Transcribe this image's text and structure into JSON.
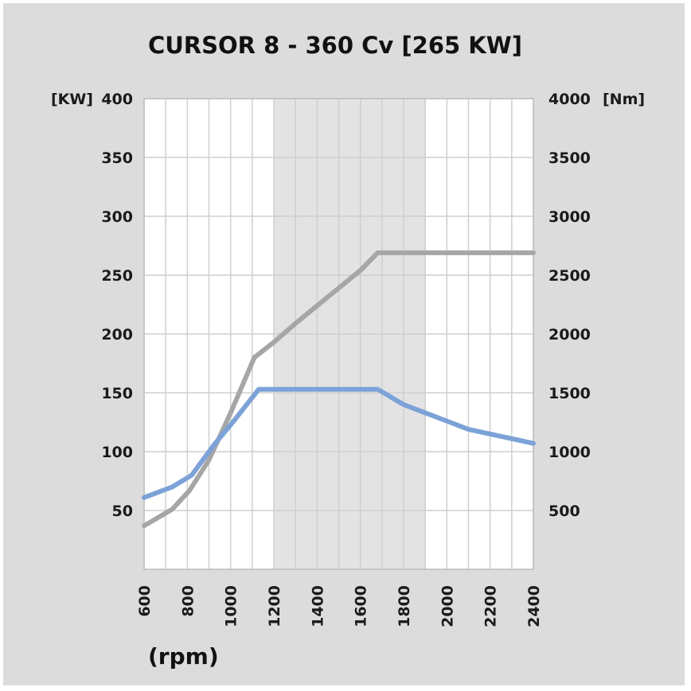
{
  "chart_data": {
    "type": "line",
    "title": "CURSOR 8 - 360 Cv [265 KW]",
    "xlabel": "(rpm)",
    "ylabel_left": "[KW]",
    "ylabel_right": "[Nm]",
    "x_ticks": [
      "600",
      "800",
      "1000",
      "1200",
      "1400",
      "1600",
      "1800",
      "2000",
      "2200",
      "2400"
    ],
    "y_left_ticks": [
      "50",
      "100",
      "150",
      "200",
      "250",
      "300",
      "350",
      "400"
    ],
    "y_right_ticks": [
      "500",
      "1000",
      "1500",
      "2000",
      "2500",
      "3000",
      "3500",
      "4000"
    ],
    "xlim": [
      600,
      2400
    ],
    "ylim_left": [
      0,
      400
    ],
    "ylim_right": [
      0,
      4000
    ],
    "grid": true,
    "shaded_band_x": [
      1200,
      1900
    ],
    "series": [
      {
        "axis": "left",
        "color": "#a6a6a6",
        "x": [
          600,
          730,
          810,
          900,
          1000,
          1110,
          1200,
          1300,
          1400,
          1500,
          1600,
          1680,
          1800,
          2000,
          2200,
          2400
        ],
        "y": [
          37,
          51,
          67,
          93,
          133,
          180,
          193,
          209,
          224,
          239,
          254,
          269,
          269,
          269,
          269,
          269
        ]
      },
      {
        "axis": "right",
        "color": "#7ca2d8",
        "x": [
          600,
          730,
          820,
          920,
          1010,
          1130,
          1200,
          1400,
          1600,
          1680,
          1800,
          1900,
          2000,
          2100,
          2200,
          2400
        ],
        "y": [
          610,
          700,
          800,
          1050,
          1250,
          1530,
          1530,
          1530,
          1530,
          1530,
          1400,
          1330,
          1260,
          1190,
          1150,
          1070
        ]
      }
    ]
  }
}
